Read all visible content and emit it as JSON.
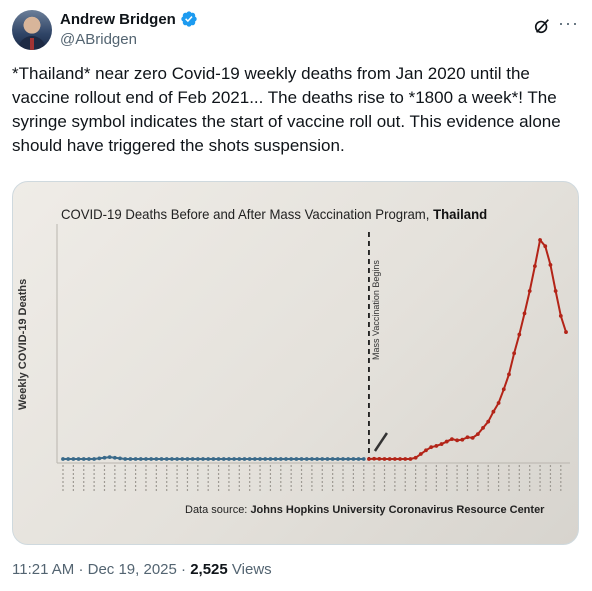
{
  "author": {
    "display_name": "Andrew Bridgen",
    "handle": "@ABridgen"
  },
  "icons": {
    "avatar": "avatar",
    "verified": "verified-badge-icon",
    "grok": "grok-icon",
    "more": "more-icon"
  },
  "colors": {
    "verified": "#1d9bf0",
    "series_before": "#3a6a8a",
    "series_after": "#b32418"
  },
  "tweet": {
    "text": "*Thailand* near zero Covid-19 weekly deaths from Jan 2020 until the vaccine rollout end of Feb 2021... The deaths rise to *1800 a week*! The syringe symbol indicates the start of vaccine roll out. This evidence alone should have triggered the shots suspension.",
    "time": "11:21 AM",
    "separator": "·",
    "date": "Dec 19, 2025",
    "views_count": "2,525",
    "views_label": "Views"
  },
  "chart_data": {
    "type": "line",
    "title": "COVID-19 Deaths Before and After Mass Vaccination Program,",
    "title_emphasis": "Thailand",
    "ylabel": "Weekly COVID-19 Deaths",
    "annotation": "Mass Vaccination Begins",
    "source_label": "Data source:",
    "source_name": "Johns Hopkins University Coronavirus Resource Center",
    "ylim": [
      0,
      1800
    ],
    "grid": false,
    "series": [
      {
        "segment": "before",
        "values": [
          0,
          0,
          0,
          0,
          0,
          0,
          0,
          5,
          10,
          15,
          10,
          5,
          0,
          0,
          0,
          0,
          0,
          0,
          0,
          0,
          0,
          0,
          0,
          0,
          0,
          0,
          0,
          0,
          0,
          0,
          0,
          0,
          0,
          0,
          0,
          0,
          0,
          0,
          0,
          0,
          0,
          0,
          0,
          0,
          0,
          0,
          0,
          0,
          0,
          0,
          0,
          0,
          0,
          0,
          0,
          0,
          0,
          0,
          0
        ]
      },
      {
        "segment": "after",
        "values": [
          0,
          2,
          1,
          0,
          0,
          0,
          0,
          0,
          0,
          10,
          40,
          70,
          95,
          105,
          120,
          140,
          160,
          150,
          155,
          175,
          170,
          200,
          250,
          300,
          380,
          450,
          560,
          680,
          850,
          1000,
          1170,
          1350,
          1550,
          1760,
          1710,
          1560,
          1350,
          1150,
          1020
        ]
      }
    ]
  }
}
